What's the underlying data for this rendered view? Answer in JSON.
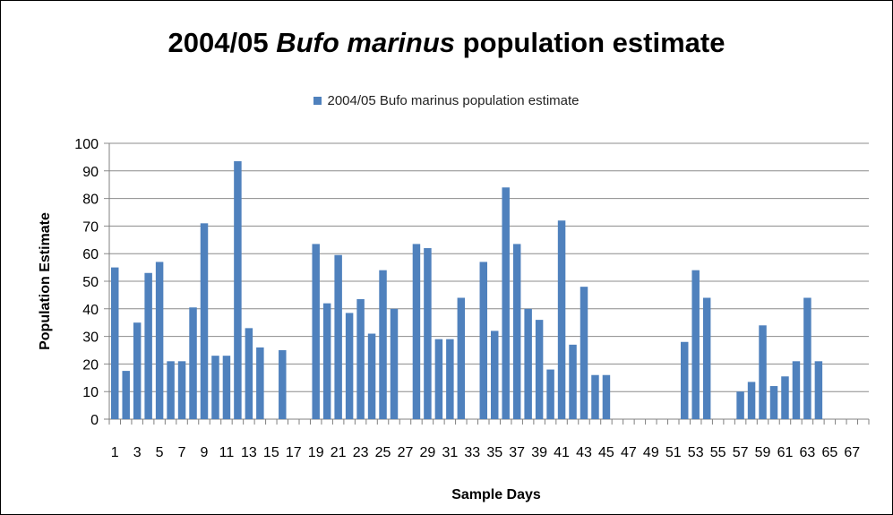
{
  "title": {
    "prefix": "2004/05 ",
    "italic": "Bufo marinus",
    "suffix": " population estimate"
  },
  "colors": {
    "bar": "#4f81bd",
    "grid": "#8c8c8c",
    "axis": "#808080",
    "text": "#000000"
  },
  "chart_data": {
    "type": "bar",
    "title": "2004/05 Bufo marinus population estimate",
    "xlabel": "Sample Days",
    "ylabel": "Population Estimate",
    "ylim": [
      0,
      100
    ],
    "yticks": [
      0,
      10,
      20,
      30,
      40,
      50,
      60,
      70,
      80,
      90,
      100
    ],
    "grid": true,
    "legend_position": "top",
    "categories": [
      1,
      2,
      3,
      4,
      5,
      6,
      7,
      8,
      9,
      10,
      11,
      12,
      13,
      14,
      15,
      16,
      17,
      18,
      19,
      20,
      21,
      22,
      23,
      24,
      25,
      26,
      27,
      28,
      29,
      30,
      31,
      32,
      33,
      34,
      35,
      36,
      37,
      38,
      39,
      40,
      41,
      42,
      43,
      44,
      45,
      46,
      47,
      48,
      49,
      50,
      51,
      52,
      53,
      54,
      55,
      56,
      57,
      58,
      59,
      60,
      61,
      62,
      63,
      64,
      65,
      66,
      67,
      68
    ],
    "xtick_labels": [
      1,
      3,
      5,
      7,
      9,
      11,
      13,
      15,
      17,
      19,
      21,
      23,
      25,
      27,
      29,
      31,
      33,
      35,
      37,
      39,
      41,
      43,
      45,
      47,
      49,
      51,
      53,
      55,
      57,
      59,
      61,
      63,
      65,
      67
    ],
    "series": [
      {
        "name": "2004/05 Bufo marinus population estimate",
        "values": [
          55,
          17.5,
          35,
          53,
          57,
          21,
          21,
          40.5,
          71,
          23,
          23,
          93.5,
          33,
          26,
          null,
          25,
          null,
          null,
          63.5,
          42,
          59.5,
          38.5,
          43.5,
          31,
          54,
          40,
          null,
          63.5,
          62,
          29,
          29,
          44,
          null,
          57,
          32,
          84,
          63.5,
          40,
          36,
          18,
          72,
          27,
          48,
          16,
          16,
          null,
          null,
          null,
          null,
          null,
          null,
          28,
          54,
          44,
          null,
          null,
          10,
          13.5,
          34,
          12,
          15.5,
          21,
          44,
          21,
          null,
          null,
          null,
          null
        ]
      }
    ]
  }
}
